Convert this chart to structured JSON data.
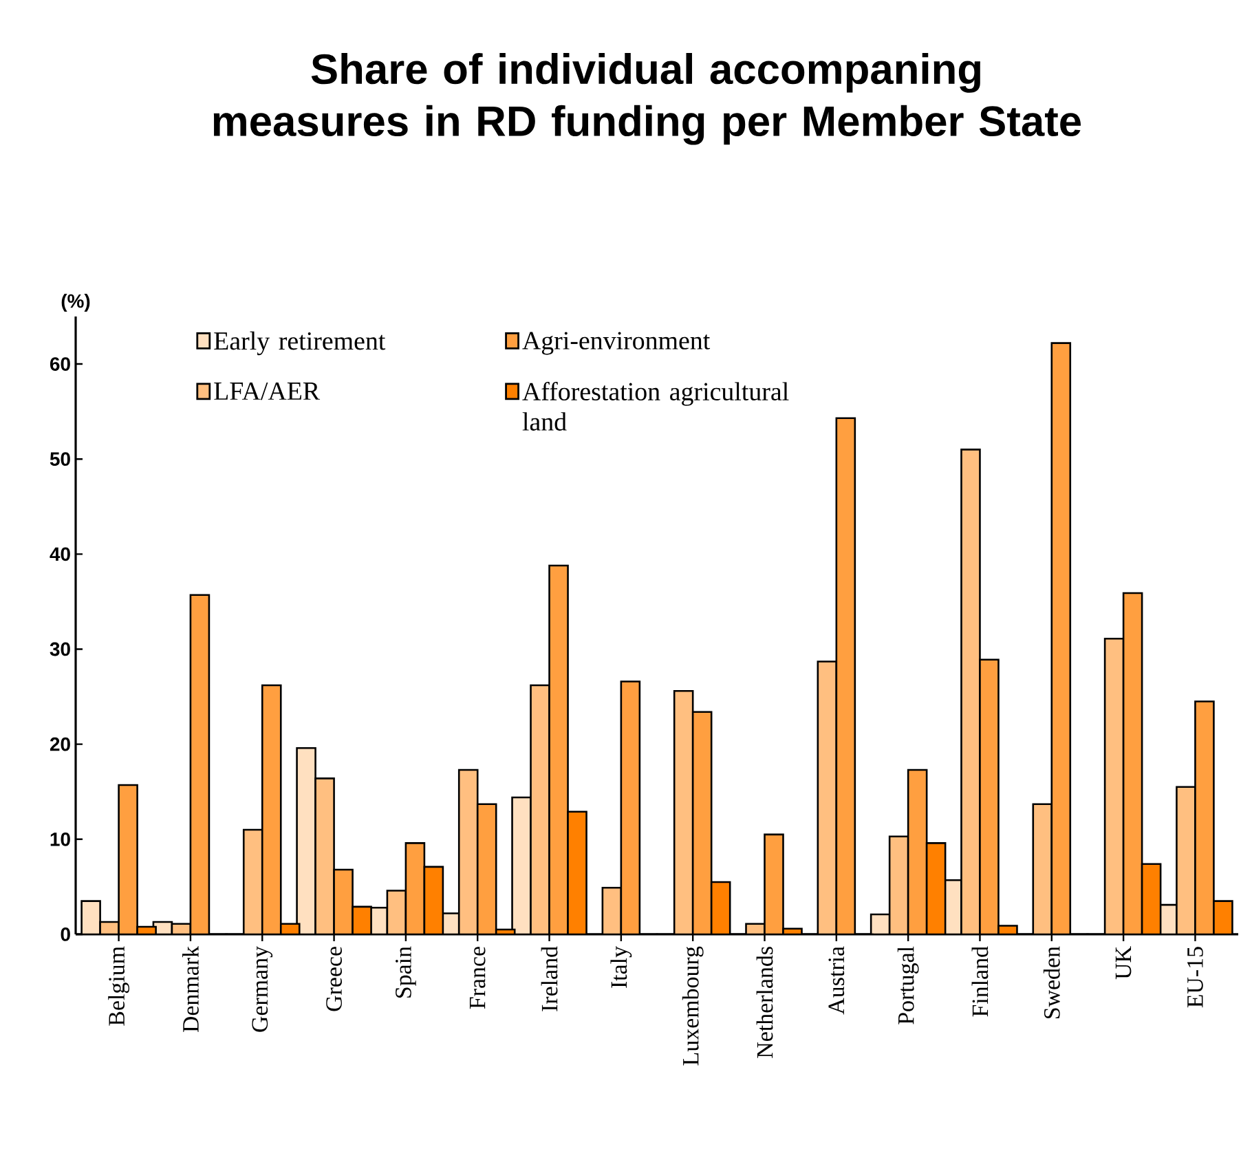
{
  "chart_data": {
    "type": "bar",
    "title": "Share of individual accompaning measures in RD funding per Member State",
    "ylabel": "(%)",
    "categories": [
      "Belgium",
      "Denmark",
      "Germany",
      "Greece",
      "Spain",
      "France",
      "Ireland",
      "Italy",
      "Luxembourg",
      "Netherlands",
      "Austria",
      "Portugal",
      "Finland",
      "Sweden",
      "UK",
      "EU-15"
    ],
    "series": [
      {
        "name": "Early retirement",
        "color": "#ffe0c0",
        "values": [
          3.5,
          1.3,
          0,
          19.6,
          2.8,
          2.2,
          14.4,
          null,
          0,
          0,
          0,
          2.1,
          5.7,
          0,
          0,
          3.1
        ]
      },
      {
        "name": "LFA/AER",
        "color": "#ffbf80",
        "values": [
          1.3,
          1.1,
          11.0,
          16.4,
          4.6,
          17.3,
          26.2,
          4.9,
          25.6,
          1.1,
          28.7,
          10.3,
          51.0,
          13.7,
          31.1,
          15.5
        ]
      },
      {
        "name": "Agri-environment",
        "color": "#ff9f40",
        "values": [
          15.7,
          35.7,
          26.2,
          6.8,
          9.6,
          13.7,
          38.8,
          26.6,
          23.4,
          10.5,
          54.3,
          17.3,
          28.9,
          62.2,
          35.9,
          24.5
        ]
      },
      {
        "name": "Afforestation agricultural land",
        "color": "#ff8000",
        "values": [
          0.8,
          0,
          1.1,
          2.9,
          7.1,
          0.5,
          12.9,
          0,
          5.5,
          0.6,
          0,
          9.6,
          0.9,
          0,
          7.4,
          3.5
        ]
      }
    ],
    "ylim": [
      0,
      65
    ],
    "yticks": [
      0,
      10,
      20,
      30,
      40,
      50,
      60
    ],
    "legend": "top left"
  }
}
